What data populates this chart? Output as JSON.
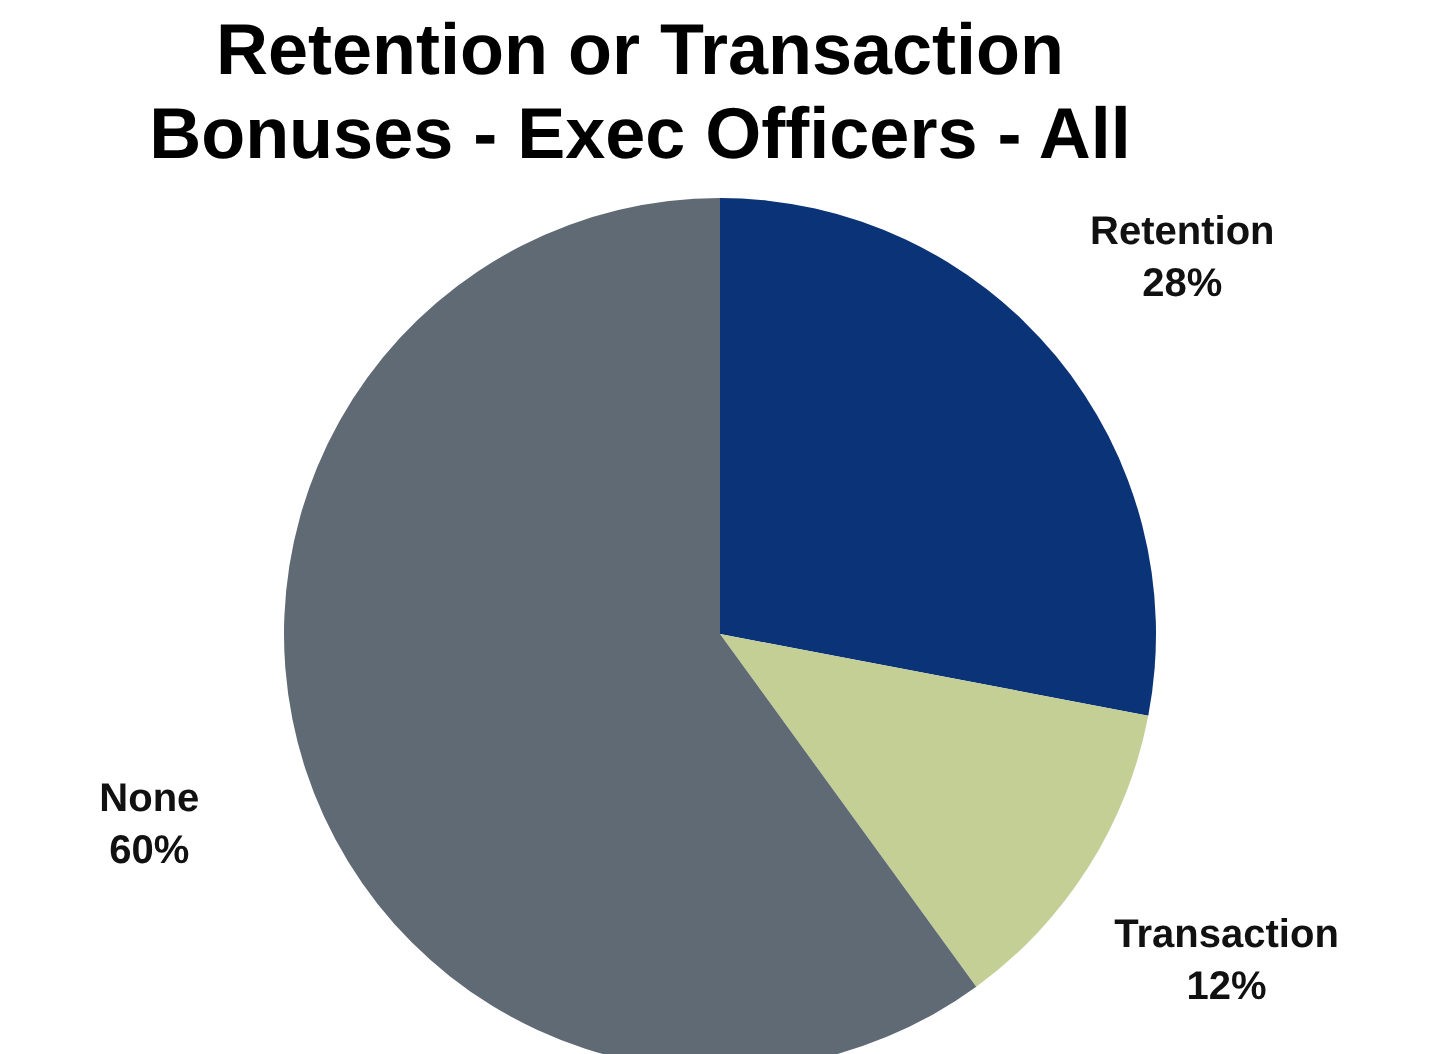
{
  "chart_data": {
    "type": "pie",
    "title": "Retention or Transaction Bonuses - Exec Officers - All",
    "categories": [
      "Retention",
      "Transaction",
      "None"
    ],
    "values": [
      28,
      12,
      60
    ],
    "value_labels": [
      "28%",
      "12%",
      "60%"
    ],
    "colors": [
      "#0b3478",
      "#c4cf96",
      "#5f6a74"
    ]
  }
}
